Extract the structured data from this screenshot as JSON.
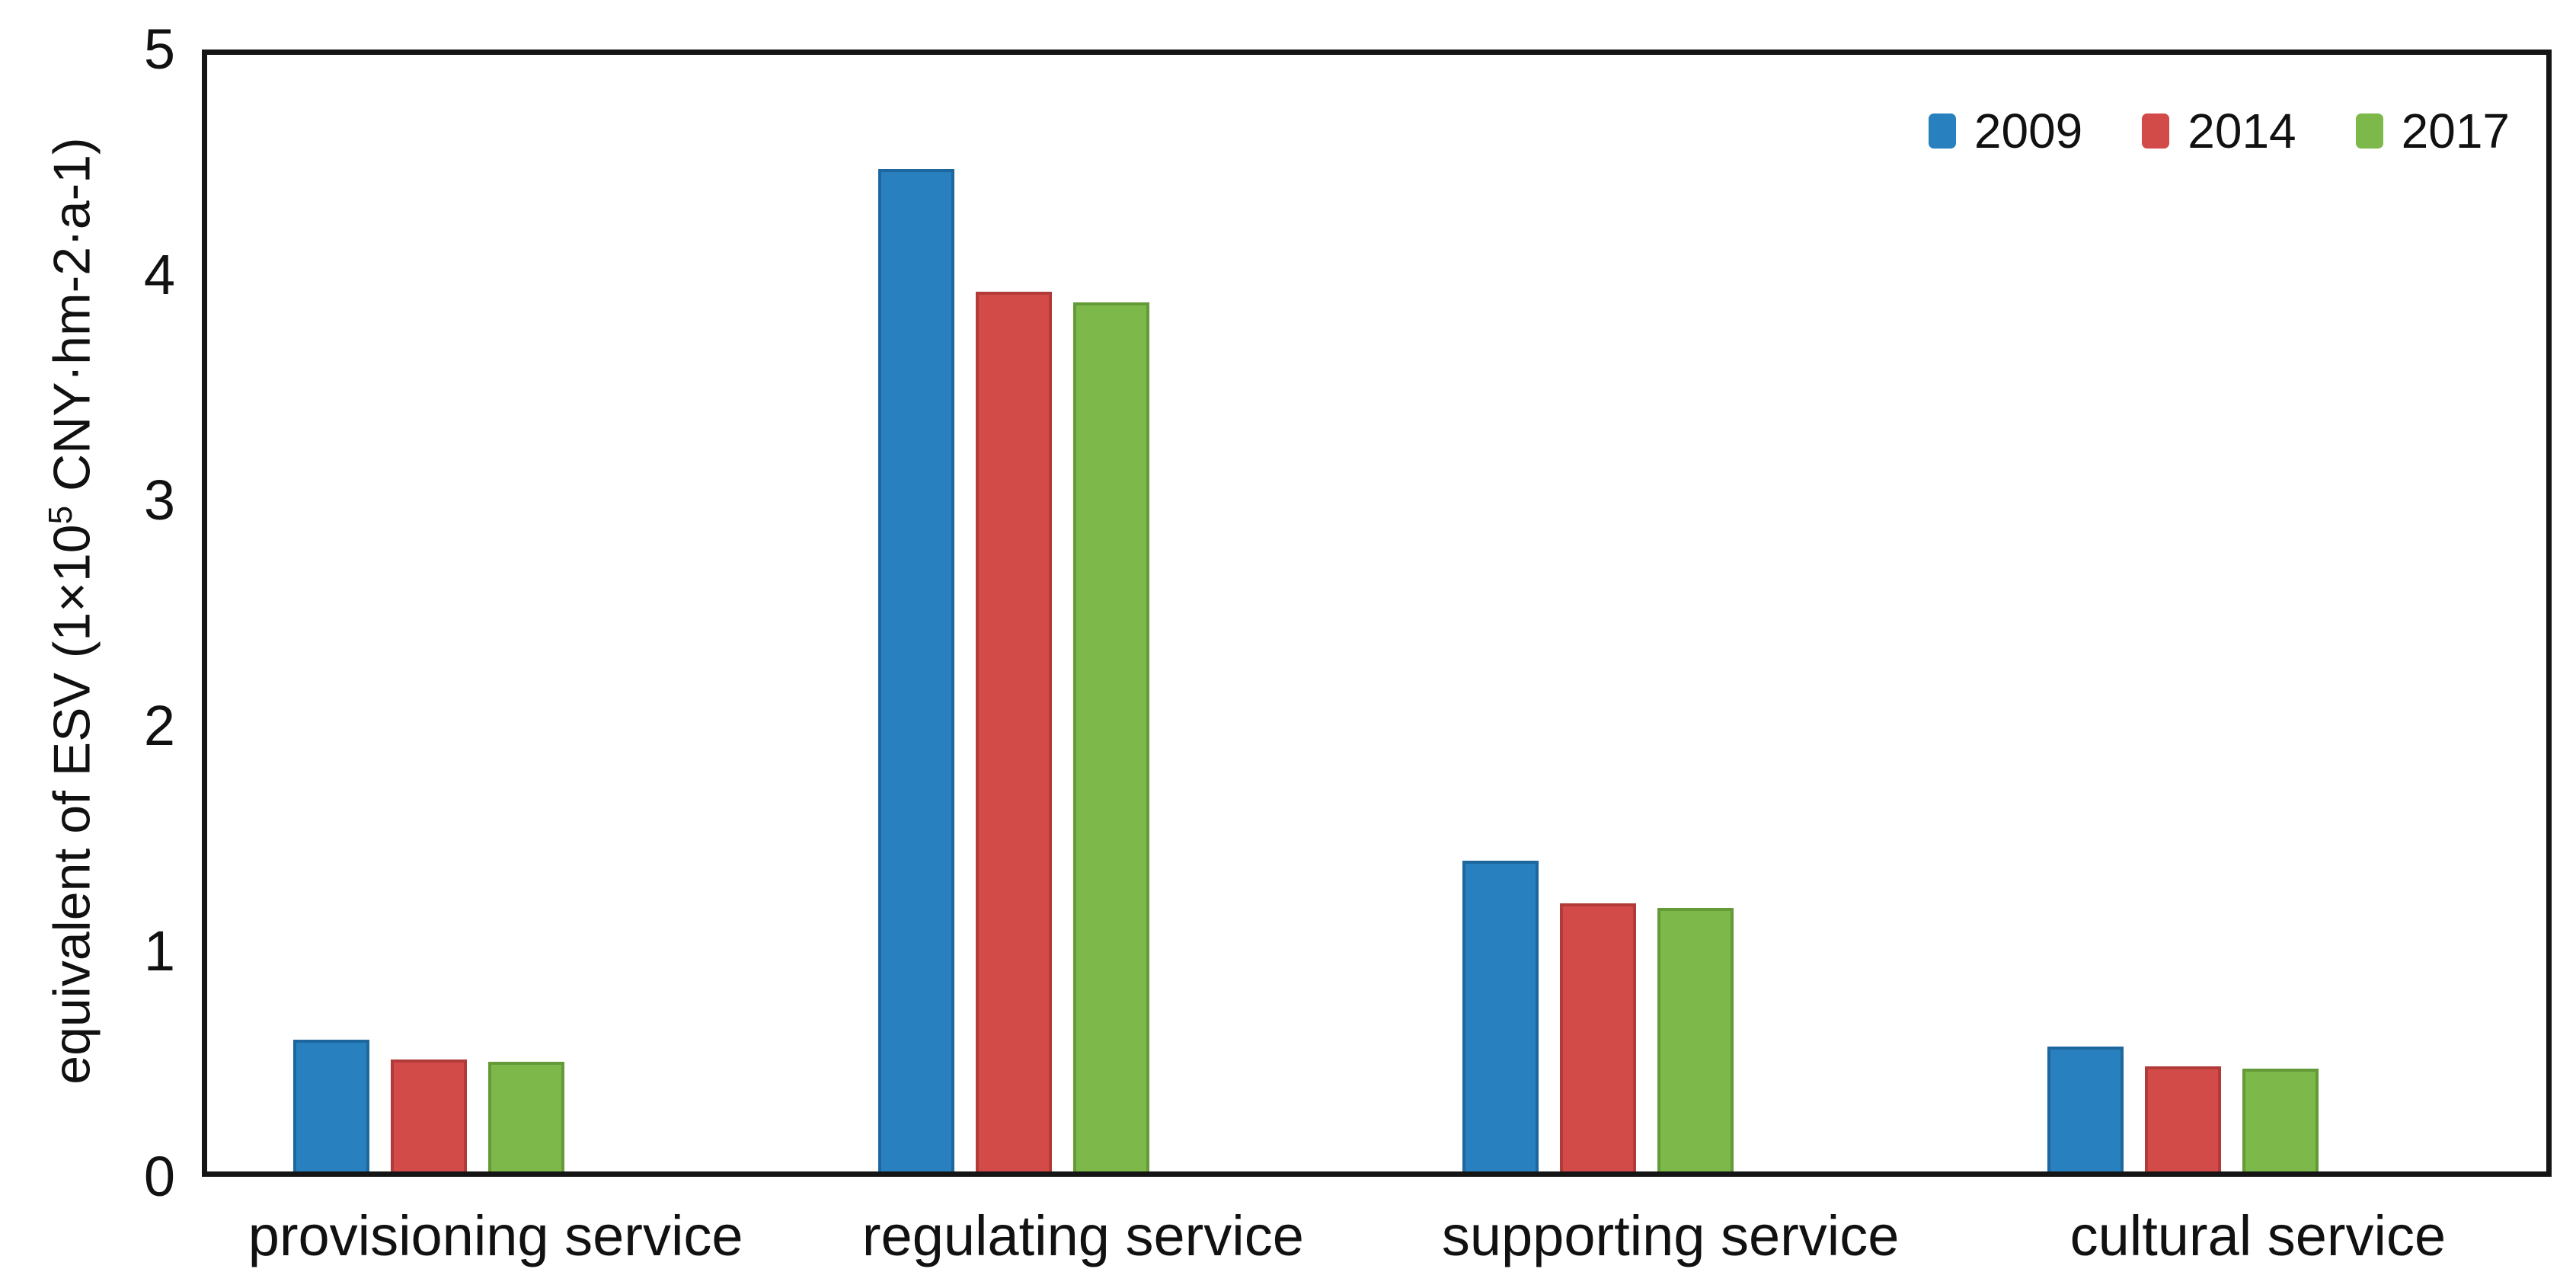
{
  "chart_data": {
    "type": "bar",
    "title": "",
    "categories": [
      "provisioning service",
      "regulating service",
      "supporting service",
      "cultural service"
    ],
    "series": [
      {
        "name": "2009",
        "color": "#2980bf",
        "edge_color": "#1d669e",
        "values": [
          0.59,
          4.49,
          1.39,
          0.56
        ]
      },
      {
        "name": "2014",
        "color": "#d34b48",
        "edge_color": "#b23a39",
        "values": [
          0.5,
          3.94,
          1.2,
          0.47
        ]
      },
      {
        "name": "2017",
        "color": "#7db84a",
        "edge_color": "#649a38",
        "values": [
          0.49,
          3.89,
          1.18,
          0.46
        ]
      }
    ],
    "ylabel_prefix": "equivalent of ESV (1×10",
    "ylabel_sup": "5",
    "ylabel_suffix": " CNY·hm-2·a-1)",
    "xlabel": "",
    "ylim": [
      0,
      5
    ],
    "yticks": [
      0,
      1,
      2,
      3,
      4,
      5
    ],
    "ytick_marks": [
      1,
      2,
      3,
      4
    ],
    "legend_position": "top-right-inside",
    "grid": false
  }
}
